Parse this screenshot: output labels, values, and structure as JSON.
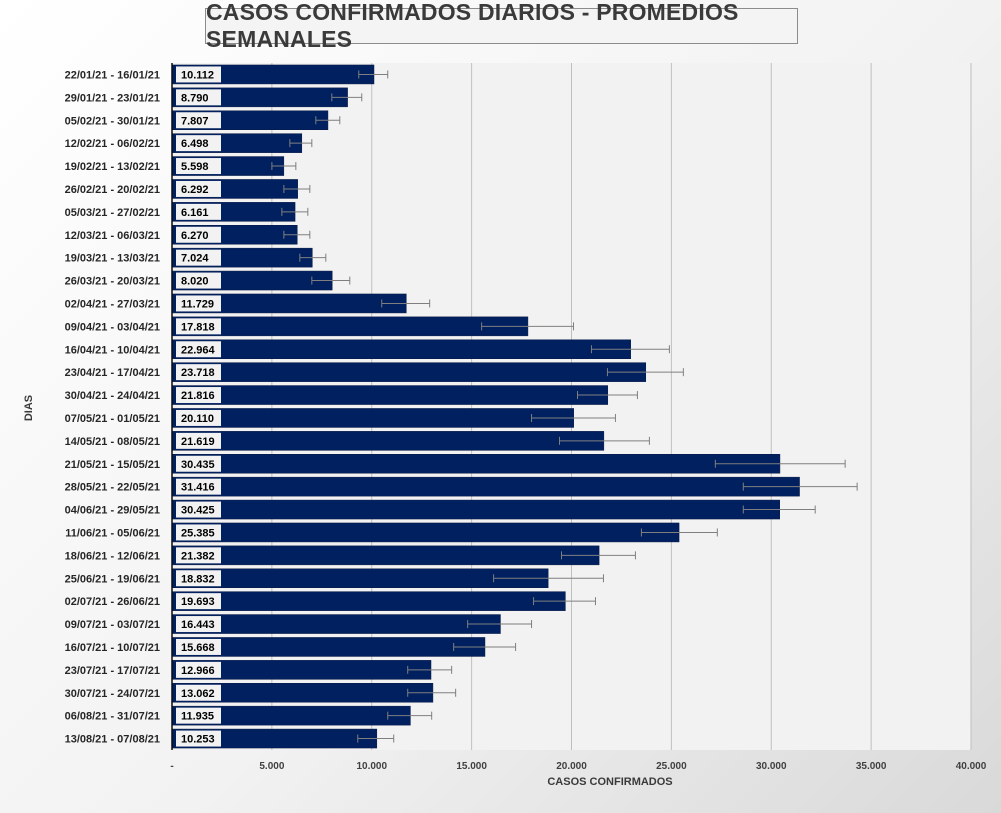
{
  "chart_data": {
    "type": "bar",
    "orientation": "horizontal",
    "title": "CASOS CONFIRMADOS DIARIOS - PROMEDIOS SEMANALES",
    "xlabel": "CASOS CONFIRMADOS",
    "ylabel": "DIAS",
    "xlim": [
      0,
      40000
    ],
    "grid": true,
    "bar_color": "#002060",
    "categories": [
      "22/01/21 - 16/01/21",
      "29/01/21 - 23/01/21",
      "05/02/21 - 30/01/21",
      "12/02/21 - 06/02/21",
      "19/02/21 - 13/02/21",
      "26/02/21 - 20/02/21",
      "05/03/21 - 27/02/21",
      "12/03/21 - 06/03/21",
      "19/03/21 - 13/03/21",
      "26/03/21 - 20/03/21",
      "02/04/21 - 27/03/21",
      "09/04/21 - 03/04/21",
      "16/04/21 - 10/04/21",
      "23/04/21 - 17/04/21",
      "30/04/21 - 24/04/21",
      "07/05/21 - 01/05/21",
      "14/05/21 - 08/05/21",
      "21/05/21 - 15/05/21",
      "28/05/21 - 22/05/21",
      "04/06/21 - 29/05/21",
      "11/06/21 - 05/06/21",
      "18/06/21 - 12/06/21",
      "25/06/21 - 19/06/21",
      "02/07/21 - 26/06/21",
      "09/07/21 - 03/07/21",
      "16/07/21 - 10/07/21",
      "23/07/21 - 17/07/21",
      "30/07/21 - 24/07/21",
      "06/08/21 - 31/07/21",
      "13/08/21 - 07/08/21"
    ],
    "values": [
      10112,
      8790,
      7807,
      6498,
      5598,
      6292,
      6161,
      6270,
      7024,
      8020,
      11729,
      17818,
      22964,
      23718,
      21816,
      20110,
      21619,
      30435,
      31416,
      30425,
      25385,
      21382,
      18832,
      19693,
      16443,
      15668,
      12966,
      13062,
      11935,
      10253
    ],
    "value_labels": [
      "10.112",
      "8.790",
      "7.807",
      "6.498",
      "5.598",
      "6.292",
      "6.161",
      "6.270",
      "7.024",
      "8.020",
      "11.729",
      "17.818",
      "22.964",
      "23.718",
      "21.816",
      "20.110",
      "21.619",
      "30.435",
      "31.416",
      "30.425",
      "25.385",
      "21.382",
      "18.832",
      "19.693",
      "16.443",
      "15.668",
      "12.966",
      "13.062",
      "11.935",
      "10.253"
    ],
    "error_low": [
      9350,
      8000,
      7200,
      5900,
      5000,
      5600,
      5500,
      5600,
      6400,
      7000,
      10500,
      15500,
      21000,
      21800,
      20300,
      18000,
      19400,
      27200,
      28600,
      28600,
      23500,
      19500,
      16100,
      18100,
      14800,
      14100,
      11800,
      11800,
      10800,
      9300
    ],
    "error_high": [
      10800,
      9500,
      8400,
      7000,
      6200,
      6900,
      6800,
      6900,
      7700,
      8900,
      12900,
      20100,
      24900,
      25600,
      23300,
      22200,
      23900,
      33700,
      34300,
      32200,
      27300,
      23200,
      21600,
      21200,
      18000,
      17200,
      14000,
      14200,
      13000,
      11100
    ],
    "x_ticks": [
      "-",
      "5.000",
      "10.000",
      "15.000",
      "20.000",
      "25.000",
      "30.000",
      "35.000",
      "40.000"
    ]
  }
}
